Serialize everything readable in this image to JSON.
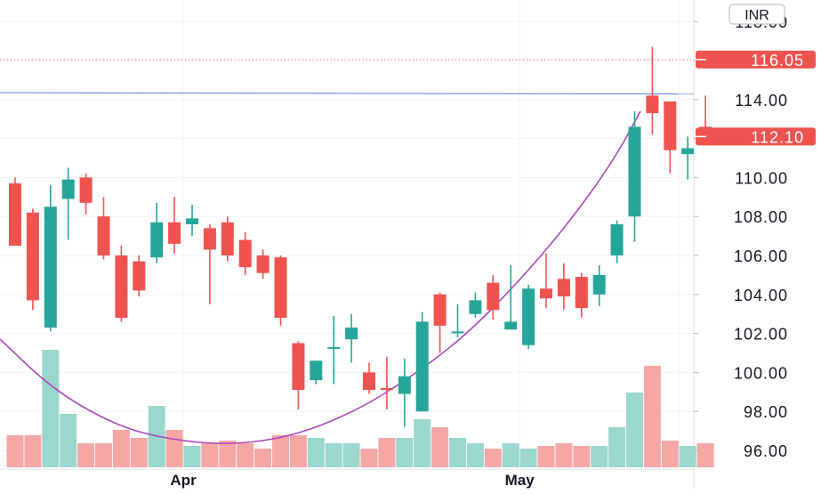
{
  "chart_data": {
    "type": "candlestick",
    "currency": "INR",
    "current_price_label": "112.10",
    "high_line_label": "116.05",
    "current_price": 112.1,
    "high_line": 116.05,
    "trendline_level": 114.35,
    "ylim": [
      95.0,
      118.9
    ],
    "y_ticks": [
      "96.00",
      "98.00",
      "100.00",
      "102.00",
      "104.00",
      "106.00",
      "108.00",
      "110.00",
      "112.00",
      "114.00",
      "116.00",
      "118.00"
    ],
    "x_tick_labels": [
      {
        "label": "Apr",
        "index": 9.5
      },
      {
        "label": "May",
        "index": 28.5
      }
    ],
    "grid": true,
    "colors": {
      "up": "#26a69a",
      "down": "#ef5350",
      "up_volume": "#9bd6cf",
      "down_volume": "#f5a7a5",
      "curve": "#ab47bc",
      "trendline": "#5b7ee5",
      "label_bg": "#ef5350"
    },
    "candles": [
      {
        "o": 109.7,
        "h": 110.0,
        "l": 106.5,
        "c": 106.5
      },
      {
        "o": 108.2,
        "h": 108.4,
        "l": 103.2,
        "c": 103.7
      },
      {
        "o": 102.3,
        "h": 109.6,
        "l": 102.1,
        "c": 108.5
      },
      {
        "o": 108.9,
        "h": 110.5,
        "l": 106.8,
        "c": 109.9
      },
      {
        "o": 110.0,
        "h": 110.2,
        "l": 108.1,
        "c": 108.7
      },
      {
        "o": 108.0,
        "h": 109.0,
        "l": 105.8,
        "c": 106.0
      },
      {
        "o": 106.0,
        "h": 106.5,
        "l": 102.6,
        "c": 102.8
      },
      {
        "o": 105.7,
        "h": 106.0,
        "l": 103.9,
        "c": 104.2
      },
      {
        "o": 105.9,
        "h": 108.7,
        "l": 105.6,
        "c": 107.7
      },
      {
        "o": 107.7,
        "h": 109.0,
        "l": 106.1,
        "c": 106.6
      },
      {
        "o": 107.6,
        "h": 108.6,
        "l": 107.0,
        "c": 107.9
      },
      {
        "o": 107.4,
        "h": 107.6,
        "l": 103.5,
        "c": 106.3
      },
      {
        "o": 107.7,
        "h": 108.0,
        "l": 105.7,
        "c": 106.0
      },
      {
        "o": 106.8,
        "h": 107.2,
        "l": 105.0,
        "c": 105.4
      },
      {
        "o": 106.0,
        "h": 106.3,
        "l": 104.8,
        "c": 105.1
      },
      {
        "o": 105.9,
        "h": 106.0,
        "l": 102.4,
        "c": 102.8
      },
      {
        "o": 101.5,
        "h": 101.6,
        "l": 98.1,
        "c": 99.1
      },
      {
        "o": 99.6,
        "h": 100.6,
        "l": 99.4,
        "c": 100.6
      },
      {
        "o": 101.3,
        "h": 102.9,
        "l": 99.4,
        "c": 101.3
      },
      {
        "o": 101.7,
        "h": 103.0,
        "l": 100.5,
        "c": 102.3
      },
      {
        "o": 100.0,
        "h": 100.5,
        "l": 98.9,
        "c": 99.1
      },
      {
        "o": 99.2,
        "h": 100.8,
        "l": 98.1,
        "c": 99.1
      },
      {
        "o": 98.9,
        "h": 100.7,
        "l": 97.2,
        "c": 99.8
      },
      {
        "o": 98.0,
        "h": 103.1,
        "l": 98.0,
        "c": 102.6
      },
      {
        "o": 104.0,
        "h": 104.1,
        "l": 101.0,
        "c": 102.4
      },
      {
        "o": 102.1,
        "h": 103.5,
        "l": 101.8,
        "c": 102.1
      },
      {
        "o": 103.0,
        "h": 104.1,
        "l": 102.8,
        "c": 103.7
      },
      {
        "o": 104.6,
        "h": 105.0,
        "l": 102.7,
        "c": 103.2
      },
      {
        "o": 102.2,
        "h": 105.5,
        "l": 102.2,
        "c": 102.6
      },
      {
        "o": 101.4,
        "h": 104.5,
        "l": 101.2,
        "c": 104.3
      },
      {
        "o": 104.3,
        "h": 106.1,
        "l": 103.3,
        "c": 103.8
      },
      {
        "o": 104.8,
        "h": 105.6,
        "l": 103.2,
        "c": 103.9
      },
      {
        "o": 104.9,
        "h": 105.1,
        "l": 102.8,
        "c": 103.3
      },
      {
        "o": 104.0,
        "h": 105.5,
        "l": 103.4,
        "c": 105.0
      },
      {
        "o": 106.0,
        "h": 107.8,
        "l": 105.6,
        "c": 107.6
      },
      {
        "o": 108.0,
        "h": 113.4,
        "l": 106.7,
        "c": 112.6
      },
      {
        "o": 114.2,
        "h": 116.7,
        "l": 112.2,
        "c": 113.3
      },
      {
        "o": 113.9,
        "h": 113.9,
        "l": 110.2,
        "c": 111.4
      },
      {
        "o": 111.2,
        "h": 112.1,
        "l": 109.9,
        "c": 111.5
      },
      {
        "o": 112.6,
        "h": 114.2,
        "l": 111.8,
        "c": 112.1
      }
    ],
    "volume": [
      0.12,
      0.12,
      0.44,
      0.2,
      0.09,
      0.09,
      0.14,
      0.11,
      0.23,
      0.14,
      0.08,
      0.09,
      0.1,
      0.09,
      0.07,
      0.12,
      0.12,
      0.11,
      0.09,
      0.09,
      0.07,
      0.11,
      0.11,
      0.18,
      0.15,
      0.11,
      0.09,
      0.07,
      0.09,
      0.07,
      0.08,
      0.09,
      0.08,
      0.08,
      0.15,
      0.28,
      0.38,
      0.1,
      0.08,
      0.09
    ]
  }
}
